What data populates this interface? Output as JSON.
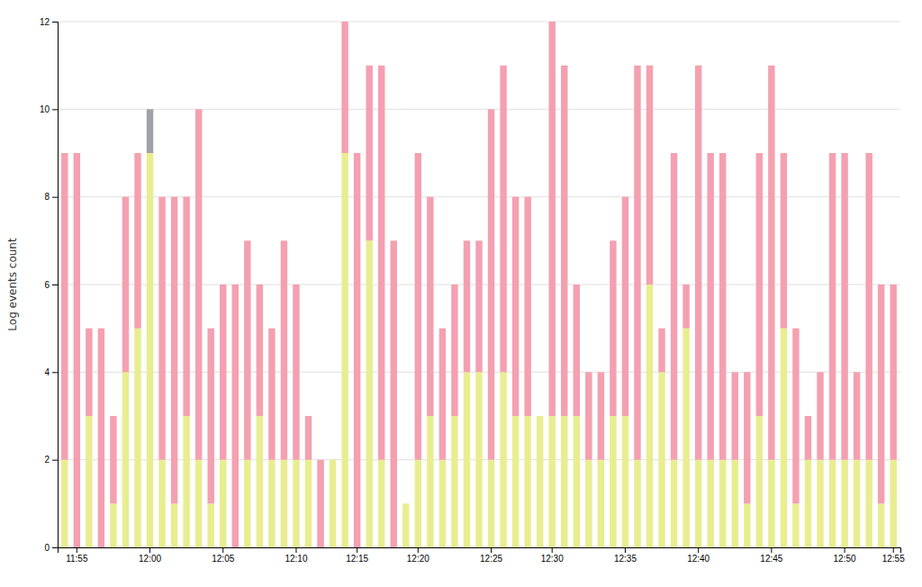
{
  "chart_data": {
    "type": "bar",
    "stacked": true,
    "grid": true,
    "ylabel": "Log events count",
    "categories": [
      null,
      "11:55",
      null,
      null,
      null,
      null,
      null,
      "12:00",
      null,
      null,
      null,
      null,
      null,
      "12:05",
      null,
      null,
      null,
      null,
      null,
      "12:10",
      null,
      null,
      null,
      null,
      "12:15",
      null,
      null,
      null,
      null,
      "12:20",
      null,
      null,
      null,
      null,
      null,
      "12:25",
      null,
      null,
      null,
      null,
      "12:30",
      null,
      null,
      null,
      null,
      null,
      "12:35",
      null,
      null,
      null,
      null,
      null,
      "12:40",
      null,
      null,
      null,
      null,
      null,
      "12:45",
      null,
      null,
      null,
      null,
      null,
      "12:50",
      null,
      null,
      null,
      "12:55"
    ],
    "series": [
      {
        "color": "#E8EE90",
        "values": [
          2,
          0,
          3,
          0,
          1,
          4,
          5,
          9,
          2,
          1,
          3,
          2,
          1,
          2,
          0,
          2,
          3,
          2,
          2,
          2,
          2,
          0,
          2,
          9,
          0,
          7,
          2,
          0,
          1,
          2,
          3,
          2,
          3,
          4,
          4,
          2,
          4,
          3,
          3,
          3,
          3,
          3,
          3,
          2,
          2,
          3,
          3,
          2,
          6,
          4,
          2,
          5,
          2,
          2,
          2,
          2,
          1,
          3,
          2,
          5,
          1,
          2,
          2,
          2,
          2,
          2,
          2,
          1,
          2
        ]
      },
      {
        "color": "#F4A0B0",
        "values": [
          7,
          9,
          2,
          5,
          2,
          4,
          4,
          0,
          6,
          7,
          5,
          8,
          4,
          4,
          6,
          5,
          3,
          3,
          5,
          4,
          1,
          2,
          0,
          3,
          9,
          4,
          9,
          7,
          0,
          7,
          5,
          3,
          3,
          3,
          3,
          8,
          7,
          5,
          5,
          0,
          9,
          8,
          3,
          2,
          2,
          4,
          5,
          9,
          5,
          1,
          7,
          1,
          9,
          7,
          7,
          2,
          3,
          6,
          9,
          4,
          4,
          1,
          2,
          7,
          7,
          2,
          7,
          5,
          4
        ]
      },
      {
        "color": "#A0A0A8",
        "values": [
          0,
          0,
          0,
          0,
          0,
          0,
          0,
          1,
          0,
          0,
          0,
          0,
          0,
          0,
          0,
          0,
          0,
          0,
          0,
          0,
          0,
          0,
          0,
          0,
          0,
          0,
          0,
          0,
          0,
          0,
          0,
          0,
          0,
          0,
          0,
          0,
          0,
          0,
          0,
          0,
          0,
          0,
          0,
          0,
          0,
          0,
          0,
          0,
          0,
          0,
          0,
          0,
          0,
          0,
          0,
          0,
          0,
          0,
          0,
          0,
          0,
          0,
          0,
          0,
          0,
          0,
          0,
          0,
          0
        ]
      }
    ],
    "ylim": [
      0,
      12
    ],
    "yticks": [
      0,
      2,
      4,
      6,
      8,
      10,
      12
    ]
  }
}
